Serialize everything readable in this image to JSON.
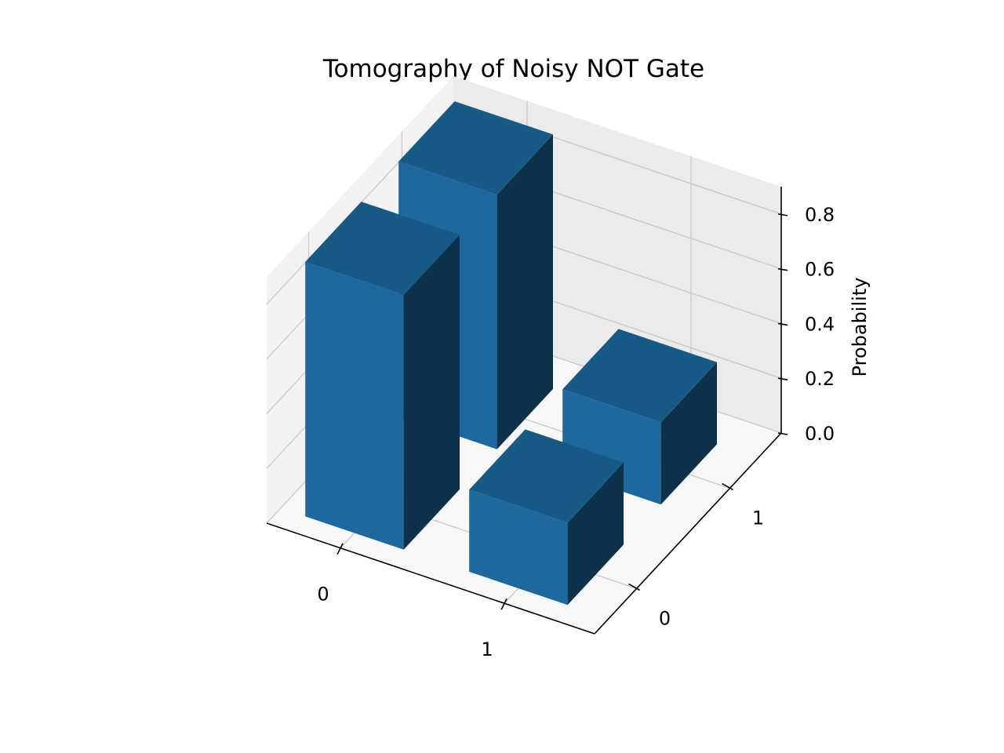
{
  "chart_data": {
    "type": "bar3d",
    "title": "Tomography of Noisy NOT Gate",
    "xlabel": "",
    "ylabel": "",
    "zlabel": "Probability",
    "x_ticks": [
      "0",
      "1"
    ],
    "y_ticks": [
      "0",
      "1"
    ],
    "z_ticks": [
      "0.0",
      "0.2",
      "0.4",
      "0.6",
      "0.8"
    ],
    "zlim": [
      0,
      0.9
    ],
    "grid": true,
    "bar_color": "#1f77b4",
    "bars": [
      {
        "x": 0,
        "y": 0,
        "value": 0.93
      },
      {
        "x": 0,
        "y": 1,
        "value": 0.93
      },
      {
        "x": 1,
        "y": 0,
        "value": 0.3
      },
      {
        "x": 1,
        "y": 1,
        "value": 0.3
      }
    ]
  },
  "colors": {
    "pane_left": "#f2f2f2",
    "pane_back": "#ebebeb",
    "pane_floor": "#f7f7f7",
    "grid": "#c8c8c8",
    "bar_top": "#185a86",
    "bar_front": "#1d689e",
    "bar_side": "#0e314b"
  }
}
